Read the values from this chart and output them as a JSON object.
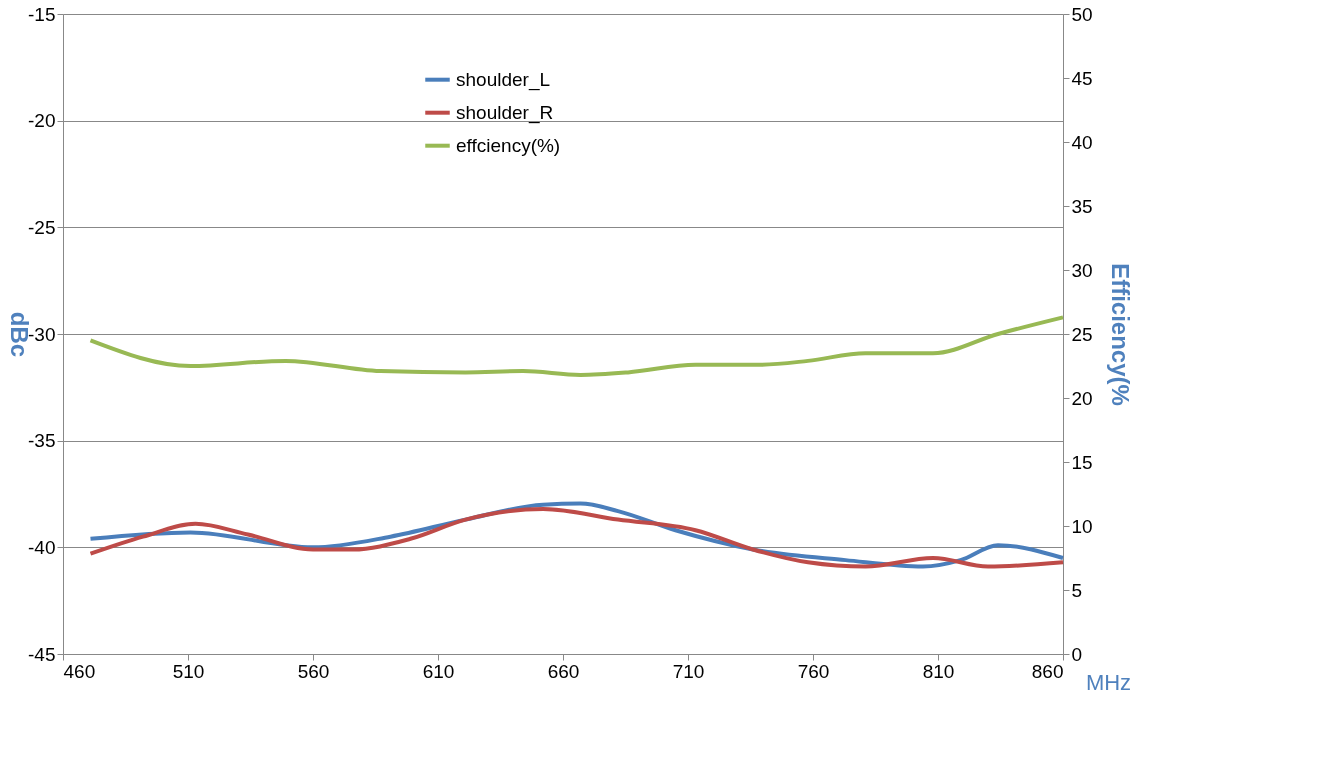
{
  "chart_data": {
    "type": "line",
    "xlabel": "MHz",
    "ylabel": "dBc",
    "y2label": "Efficiency(%",
    "xlim": [
      460,
      860
    ],
    "xticks": [
      460,
      510,
      560,
      610,
      660,
      710,
      760,
      810,
      860
    ],
    "ylim": [
      -45,
      -15
    ],
    "yticks": [
      -45,
      -40,
      -35,
      -30,
      -25,
      -20,
      -15
    ],
    "y2lim": [
      0,
      50
    ],
    "y2ticks": [
      0,
      5,
      10,
      15,
      20,
      25,
      30,
      35,
      40,
      45,
      50
    ],
    "grid": "y",
    "legend": "top",
    "line_style": "solid",
    "marker": "none",
    "series": [
      {
        "name": "shoulder_L",
        "color": "#4a7ebb",
        "x": [
          471,
          511,
          560,
          591,
          621,
          652,
          667,
          682,
          705,
          736,
          773,
          804,
          819,
          834,
          860
        ],
        "values": [
          -39.6,
          -39.3,
          -40.0,
          -39.5,
          -38.7,
          -38.0,
          -37.95,
          -38.3,
          -39.2,
          -40.1,
          -40.6,
          -40.9,
          -40.6,
          -39.9,
          -40.5
        ]
      },
      {
        "name": "shoulder_R",
        "color": "#be4b48",
        "x": [
          471,
          492,
          513,
          534,
          560,
          576,
          599,
          621,
          652,
          682,
          713,
          736,
          758,
          781,
          808,
          830,
          860
        ],
        "values": [
          -40.3,
          -39.5,
          -38.9,
          -39.4,
          -40.1,
          -40.1,
          -39.6,
          -38.7,
          -38.2,
          -38.7,
          -39.2,
          -40.1,
          -40.7,
          -40.9,
          -40.5,
          -40.9,
          -40.7
        ]
      },
      {
        "name": "effciency(%)",
        "color": "#98b954",
        "axis": "y2",
        "x": [
          471,
          511,
          549,
          587,
          621,
          644,
          667,
          686,
          713,
          739,
          758,
          781,
          808,
          834,
          860
        ],
        "values": [
          24.5,
          22.5,
          22.9,
          22.1,
          22.0,
          22.1,
          21.8,
          22.0,
          22.6,
          22.6,
          22.9,
          23.5,
          23.5,
          25.0,
          26.3
        ]
      }
    ]
  }
}
